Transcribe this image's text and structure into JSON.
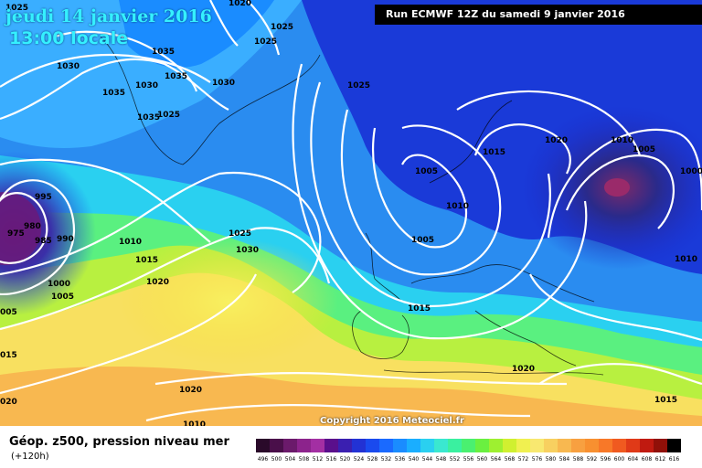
{
  "header": {
    "date": "jeudi 14 janvier 2016",
    "time": "13:00 locale",
    "run": "Run ECMWF 12Z du samedi 9 janvier 2016"
  },
  "footer": {
    "title": "Géop. z500, pression niveau mer",
    "subtitle": "(+120h)",
    "copyright": "Copyright 2016 Meteociel.fr"
  },
  "legend": {
    "values": [
      "496",
      "500",
      "504",
      "508",
      "512",
      "516",
      "520",
      "524",
      "528",
      "532",
      "536",
      "540",
      "544",
      "548",
      "552",
      "556",
      "560",
      "564",
      "568",
      "572",
      "576",
      "580",
      "584",
      "588",
      "592",
      "596",
      "600",
      "604",
      "608",
      "612",
      "616"
    ],
    "colors": [
      "#2a0a2a",
      "#4a0f4a",
      "#6b1a6b",
      "#8c238c",
      "#a32fa3",
      "#5a0f8c",
      "#3a1fb0",
      "#2232d4",
      "#1a4aee",
      "#1a6aff",
      "#1a8cff",
      "#1aaeff",
      "#2ad0f0",
      "#3ae8d0",
      "#3af0a0",
      "#4af070",
      "#6af040",
      "#9ef030",
      "#d0f030",
      "#f0f050",
      "#f8e870",
      "#f8d060",
      "#f8b850",
      "#f8a040",
      "#f89030",
      "#f87828",
      "#f05a20",
      "#e03a18",
      "#c01a10",
      "#901008",
      "#000000"
    ]
  },
  "isobars": [
    {
      "label": "1025"
    },
    {
      "label": "1020"
    },
    {
      "label": "1025"
    },
    {
      "label": "1030"
    },
    {
      "label": "1035"
    },
    {
      "label": "1035"
    },
    {
      "label": "1030"
    },
    {
      "label": "1035"
    },
    {
      "label": "1030"
    },
    {
      "label": "1025"
    },
    {
      "label": "1035"
    },
    {
      "label": "1025"
    },
    {
      "label": "995"
    },
    {
      "label": "980"
    },
    {
      "label": "975"
    },
    {
      "label": "985"
    },
    {
      "label": "990"
    },
    {
      "label": "1010"
    },
    {
      "label": "1015"
    },
    {
      "label": "1020"
    },
    {
      "label": "1000"
    },
    {
      "label": "1005"
    },
    {
      "label": "005"
    },
    {
      "label": "015"
    },
    {
      "label": "020"
    },
    {
      "label": "1025"
    },
    {
      "label": "1030"
    },
    {
      "label": "1020"
    },
    {
      "label": "1010"
    },
    {
      "label": "1025"
    },
    {
      "label": "1005"
    },
    {
      "label": "1010"
    },
    {
      "label": "1005"
    },
    {
      "label": "1015"
    },
    {
      "label": "1020"
    },
    {
      "label": "1010"
    },
    {
      "label": "1005"
    },
    {
      "label": "1000"
    },
    {
      "label": "1010"
    },
    {
      "label": "1015"
    },
    {
      "label": "1020"
    },
    {
      "label": "1015"
    }
  ]
}
